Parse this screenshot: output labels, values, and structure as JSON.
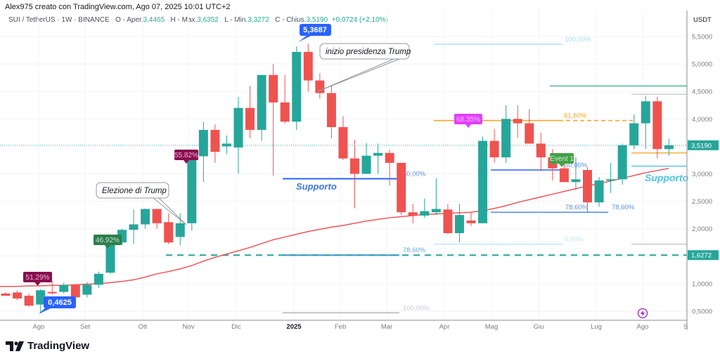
{
  "header": {
    "credit": "Alex975 creato con TradingView.com, Ago 07, 2025 10:01 UTC+2"
  },
  "legend": {
    "symbol": "SUI / TetherUS · 1W · BINANCE",
    "open_label": "O - Aper.",
    "open": "3,4465",
    "high_label": "H - Max.",
    "high": "3,6352",
    "low_label": "L - Min.",
    "low": "3,3272",
    "close_label": "C - Chius.",
    "close": "3,5190",
    "change": "+0,0724 (+2,10%)"
  },
  "footer": {
    "brand": "TradingView"
  },
  "colors": {
    "up": "#26a69a",
    "down": "#ef5350",
    "ma": "#f0555a",
    "accent_blue": "#2962ff",
    "fib_orange": "#f7a21b",
    "grid": "#f0f3fa"
  },
  "chart_data": {
    "type": "candlestick",
    "title": "SUI / TetherUS · 1W · BINANCE",
    "ylabel": "USDT",
    "ylim": [
      0.3,
      5.75
    ],
    "yticks": [
      "5,5000",
      "5,0000",
      "4,5000",
      "4,0000",
      "3,5000",
      "3,0000",
      "2,5000",
      "2,0000",
      "1,5000",
      "1,0000",
      "0,5000"
    ],
    "xticks": [
      "Ago",
      "Set",
      "Ott",
      "Nov",
      "Dic",
      "2025",
      "Feb",
      "Mar",
      "Apr",
      "Mag",
      "Giu",
      "Lug",
      "Ago",
      "S"
    ],
    "price_labels": {
      "last": "3,5190",
      "dashed_level": "1,6272"
    },
    "candles": [
      {
        "o": 0.82,
        "h": 0.85,
        "l": 0.78,
        "c": 0.78
      },
      {
        "o": 0.84,
        "h": 0.88,
        "l": 0.7,
        "c": 0.73
      },
      {
        "o": 0.78,
        "h": 0.82,
        "l": 0.58,
        "c": 0.6
      },
      {
        "o": 0.62,
        "h": 0.9,
        "l": 0.46,
        "c": 0.88
      },
      {
        "o": 0.85,
        "h": 1.05,
        "l": 0.8,
        "c": 0.83
      },
      {
        "o": 0.85,
        "h": 1.02,
        "l": 0.82,
        "c": 0.98
      },
      {
        "o": 0.98,
        "h": 1.0,
        "l": 0.7,
        "c": 0.75
      },
      {
        "o": 0.8,
        "h": 1.03,
        "l": 0.75,
        "c": 0.98
      },
      {
        "o": 0.98,
        "h": 1.22,
        "l": 0.92,
        "c": 1.18
      },
      {
        "o": 1.2,
        "h": 1.83,
        "l": 1.18,
        "c": 1.78
      },
      {
        "o": 1.75,
        "h": 2.0,
        "l": 1.7,
        "c": 1.98
      },
      {
        "o": 1.98,
        "h": 2.35,
        "l": 1.72,
        "c": 2.08
      },
      {
        "o": 2.08,
        "h": 2.37,
        "l": 2.0,
        "c": 2.36
      },
      {
        "o": 2.36,
        "h": 2.36,
        "l": 2.0,
        "c": 2.1
      },
      {
        "o": 2.12,
        "h": 2.28,
        "l": 1.72,
        "c": 1.75
      },
      {
        "o": 1.85,
        "h": 2.28,
        "l": 1.7,
        "c": 2.1
      },
      {
        "o": 2.1,
        "h": 3.4,
        "l": 1.97,
        "c": 3.32
      },
      {
        "o": 3.32,
        "h": 3.95,
        "l": 2.85,
        "c": 3.8
      },
      {
        "o": 3.8,
        "h": 3.9,
        "l": 3.2,
        "c": 3.4
      },
      {
        "o": 3.5,
        "h": 3.7,
        "l": 3.36,
        "c": 3.55
      },
      {
        "o": 3.48,
        "h": 4.4,
        "l": 3.0,
        "c": 4.2
      },
      {
        "o": 4.2,
        "h": 4.6,
        "l": 3.65,
        "c": 3.8
      },
      {
        "o": 3.8,
        "h": 4.8,
        "l": 3.6,
        "c": 4.8
      },
      {
        "o": 4.8,
        "h": 5.0,
        "l": 2.97,
        "c": 4.3
      },
      {
        "o": 4.3,
        "h": 4.8,
        "l": 3.92,
        "c": 3.95
      },
      {
        "o": 3.95,
        "h": 5.32,
        "l": 3.8,
        "c": 5.22
      },
      {
        "o": 5.22,
        "h": 5.37,
        "l": 4.5,
        "c": 4.7
      },
      {
        "o": 4.7,
        "h": 4.83,
        "l": 4.37,
        "c": 4.47
      },
      {
        "o": 4.47,
        "h": 4.6,
        "l": 3.65,
        "c": 3.85
      },
      {
        "o": 3.85,
        "h": 4.05,
        "l": 3.25,
        "c": 3.28
      },
      {
        "o": 3.28,
        "h": 3.62,
        "l": 2.37,
        "c": 3.0
      },
      {
        "o": 3.0,
        "h": 3.56,
        "l": 3.0,
        "c": 3.33
      },
      {
        "o": 3.33,
        "h": 3.55,
        "l": 3.0,
        "c": 3.38
      },
      {
        "o": 3.38,
        "h": 3.44,
        "l": 2.79,
        "c": 3.2
      },
      {
        "o": 3.2,
        "h": 3.2,
        "l": 2.25,
        "c": 2.3
      },
      {
        "o": 2.3,
        "h": 2.45,
        "l": 2.1,
        "c": 2.24
      },
      {
        "o": 2.24,
        "h": 2.55,
        "l": 2.2,
        "c": 2.32
      },
      {
        "o": 2.3,
        "h": 2.92,
        "l": 2.25,
        "c": 2.36
      },
      {
        "o": 2.35,
        "h": 2.45,
        "l": 1.9,
        "c": 1.92
      },
      {
        "o": 1.92,
        "h": 2.45,
        "l": 1.75,
        "c": 2.25
      },
      {
        "o": 2.15,
        "h": 2.3,
        "l": 2.05,
        "c": 2.1
      },
      {
        "o": 2.1,
        "h": 3.68,
        "l": 2.1,
        "c": 3.6
      },
      {
        "o": 3.6,
        "h": 3.82,
        "l": 3.2,
        "c": 3.3
      },
      {
        "o": 3.3,
        "h": 4.25,
        "l": 3.2,
        "c": 4.0
      },
      {
        "o": 4.0,
        "h": 4.25,
        "l": 3.65,
        "c": 3.92
      },
      {
        "o": 3.92,
        "h": 4.18,
        "l": 3.55,
        "c": 3.55
      },
      {
        "o": 3.55,
        "h": 3.75,
        "l": 3.05,
        "c": 3.3
      },
      {
        "o": 3.3,
        "h": 3.45,
        "l": 2.88,
        "c": 3.1
      },
      {
        "o": 3.1,
        "h": 3.38,
        "l": 2.95,
        "c": 2.85
      },
      {
        "o": 2.85,
        "h": 3.3,
        "l": 2.7,
        "c": 2.9
      },
      {
        "o": 3.07,
        "h": 3.12,
        "l": 2.3,
        "c": 2.48
      },
      {
        "o": 2.48,
        "h": 2.94,
        "l": 2.4,
        "c": 2.88
      },
      {
        "o": 2.88,
        "h": 3.2,
        "l": 2.65,
        "c": 2.9
      },
      {
        "o": 2.9,
        "h": 3.55,
        "l": 2.8,
        "c": 3.52
      },
      {
        "o": 3.52,
        "h": 4.08,
        "l": 3.45,
        "c": 3.92
      },
      {
        "o": 3.92,
        "h": 4.42,
        "l": 3.45,
        "c": 4.32
      },
      {
        "o": 4.32,
        "h": 4.4,
        "l": 3.28,
        "c": 3.45
      },
      {
        "o": 3.45,
        "h": 3.64,
        "l": 3.33,
        "c": 3.52
      }
    ],
    "ma_series": [
      0.95,
      0.95,
      0.96,
      0.96,
      0.97,
      0.97,
      0.98,
      0.99,
      1.0,
      1.02,
      1.04,
      1.07,
      1.12,
      1.18,
      1.22,
      1.27,
      1.33,
      1.41,
      1.48,
      1.54,
      1.6,
      1.66,
      1.73,
      1.8,
      1.85,
      1.9,
      1.95,
      1.99,
      2.03,
      2.06,
      2.1,
      2.14,
      2.17,
      2.2,
      2.22,
      2.24,
      2.26,
      2.27,
      2.28,
      2.29,
      2.3,
      2.33,
      2.37,
      2.42,
      2.48,
      2.53,
      2.58,
      2.63,
      2.68,
      2.73,
      2.78,
      2.82,
      2.87,
      2.92,
      2.97,
      3.02,
      3.06,
      3.1
    ],
    "annotations": [
      {
        "text": "5,3687",
        "kind": "price-callout"
      },
      {
        "text": "0,4625",
        "kind": "price-callout"
      },
      {
        "text": "51.29%",
        "kind": "pct-tag"
      },
      {
        "text": "46.92%",
        "kind": "pct-tag"
      },
      {
        "text": "55.82%",
        "kind": "pct-tag"
      },
      {
        "text": "68.35%",
        "kind": "pct-tag"
      },
      {
        "text": "Event 1",
        "kind": "event-tag"
      },
      {
        "text": "Elezione di Trump",
        "kind": "callout"
      },
      {
        "text": "inizio presidenza Trump",
        "kind": "callout"
      },
      {
        "text": "Supporto",
        "kind": "label"
      },
      {
        "text": "Supporto",
        "kind": "label"
      }
    ],
    "fib_levels": [
      {
        "label": "100,00%",
        "price": 5.36
      },
      {
        "label": "61,60%",
        "price": 3.97
      },
      {
        "label": "50,00%",
        "price": 3.07
      },
      {
        "label": "78,60%",
        "price": 2.3
      },
      {
        "label": "0,00%",
        "price": 1.72
      },
      {
        "label": "78,60%",
        "price": 1.52
      },
      {
        "label": "100,00%",
        "price": 0.47
      },
      {
        "label": "50,00%",
        "price": 2.91
      }
    ]
  }
}
